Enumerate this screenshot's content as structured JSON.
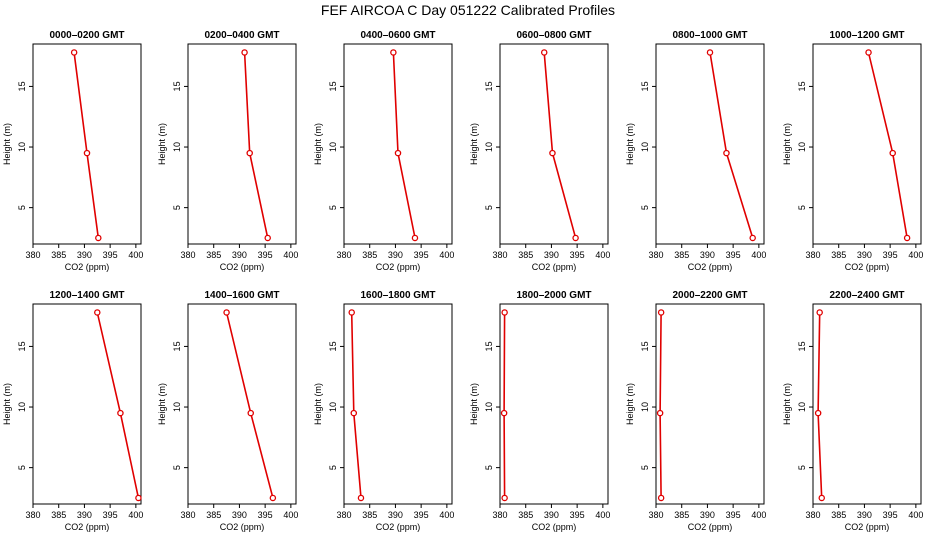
{
  "title": "FEF AIRCOA C  Day 051222  Calibrated Profiles",
  "colors": {
    "series": "#e00000",
    "axis": "#000000"
  },
  "chart_data": [
    {
      "type": "line",
      "title": "0000–0200 GMT",
      "xlabel": "CO2 (ppm)",
      "ylabel": "Height (m)",
      "xlim": [
        380,
        401
      ],
      "ylim": [
        2,
        18.5
      ],
      "xticks": [
        "380",
        "385",
        "390",
        "395",
        "400"
      ],
      "yticks": [
        "5",
        "10",
        "15"
      ],
      "x": [
        388.0,
        390.5,
        392.7
      ],
      "y": [
        17.8,
        9.5,
        2.5
      ]
    },
    {
      "type": "line",
      "title": "0200–0400 GMT",
      "xlabel": "CO2 (ppm)",
      "ylabel": "Height (m)",
      "xlim": [
        380,
        401
      ],
      "ylim": [
        2,
        18.5
      ],
      "xticks": [
        "380",
        "385",
        "390",
        "395",
        "400"
      ],
      "yticks": [
        "5",
        "10",
        "15"
      ],
      "x": [
        391.0,
        392.0,
        395.5
      ],
      "y": [
        17.8,
        9.5,
        2.5
      ]
    },
    {
      "type": "line",
      "title": "0400–0600 GMT",
      "xlabel": "CO2 (ppm)",
      "ylabel": "Height (m)",
      "xlim": [
        380,
        401
      ],
      "ylim": [
        2,
        18.5
      ],
      "xticks": [
        "380",
        "385",
        "390",
        "395",
        "400"
      ],
      "yticks": [
        "5",
        "10",
        "15"
      ],
      "x": [
        389.6,
        390.5,
        393.8
      ],
      "y": [
        17.8,
        9.5,
        2.5
      ]
    },
    {
      "type": "line",
      "title": "0600–0800 GMT",
      "xlabel": "CO2 (ppm)",
      "ylabel": "Height (m)",
      "xlim": [
        380,
        401
      ],
      "ylim": [
        2,
        18.5
      ],
      "xticks": [
        "380",
        "385",
        "390",
        "395",
        "400"
      ],
      "yticks": [
        "5",
        "10",
        "15"
      ],
      "x": [
        388.6,
        390.2,
        394.7
      ],
      "y": [
        17.8,
        9.5,
        2.5
      ]
    },
    {
      "type": "line",
      "title": "0800–1000 GMT",
      "xlabel": "CO2 (ppm)",
      "ylabel": "Height (m)",
      "xlim": [
        380,
        401
      ],
      "ylim": [
        2,
        18.5
      ],
      "xticks": [
        "380",
        "385",
        "390",
        "395",
        "400"
      ],
      "yticks": [
        "5",
        "10",
        "15"
      ],
      "x": [
        390.5,
        393.7,
        398.8
      ],
      "y": [
        17.8,
        9.5,
        2.5
      ]
    },
    {
      "type": "line",
      "title": "1000–1200 GMT",
      "xlabel": "CO2 (ppm)",
      "ylabel": "Height (m)",
      "xlim": [
        380,
        401
      ],
      "ylim": [
        2,
        18.5
      ],
      "xticks": [
        "380",
        "385",
        "390",
        "395",
        "400"
      ],
      "yticks": [
        "5",
        "10",
        "15"
      ],
      "x": [
        390.8,
        395.5,
        398.3
      ],
      "y": [
        17.8,
        9.5,
        2.5
      ]
    },
    {
      "type": "line",
      "title": "1200–1400 GMT",
      "xlabel": "CO2 (ppm)",
      "ylabel": "Height (m)",
      "xlim": [
        380,
        401
      ],
      "ylim": [
        2,
        18.5
      ],
      "xticks": [
        "380",
        "385",
        "390",
        "395",
        "400"
      ],
      "yticks": [
        "5",
        "10",
        "15"
      ],
      "x": [
        392.5,
        397.0,
        400.5
      ],
      "y": [
        17.8,
        9.5,
        2.5
      ]
    },
    {
      "type": "line",
      "title": "1400–1600 GMT",
      "xlabel": "CO2 (ppm)",
      "ylabel": "Height (m)",
      "xlim": [
        380,
        401
      ],
      "ylim": [
        2,
        18.5
      ],
      "xticks": [
        "380",
        "385",
        "390",
        "395",
        "400"
      ],
      "yticks": [
        "5",
        "10",
        "15"
      ],
      "x": [
        387.5,
        392.2,
        396.5
      ],
      "y": [
        17.8,
        9.5,
        2.5
      ]
    },
    {
      "type": "line",
      "title": "1600–1800 GMT",
      "xlabel": "CO2 (ppm)",
      "ylabel": "Height (m)",
      "xlim": [
        380,
        401
      ],
      "ylim": [
        2,
        18.5
      ],
      "xticks": [
        "380",
        "385",
        "390",
        "395",
        "400"
      ],
      "yticks": [
        "5",
        "10",
        "15"
      ],
      "x": [
        381.5,
        381.9,
        383.3
      ],
      "y": [
        17.8,
        9.5,
        2.5
      ]
    },
    {
      "type": "line",
      "title": "1800–2000 GMT",
      "xlabel": "CO2 (ppm)",
      "ylabel": "Height (m)",
      "xlim": [
        380,
        401
      ],
      "ylim": [
        2,
        18.5
      ],
      "xticks": [
        "380",
        "385",
        "390",
        "395",
        "400"
      ],
      "yticks": [
        "5",
        "10",
        "15"
      ],
      "x": [
        380.9,
        380.8,
        380.9
      ],
      "y": [
        17.8,
        9.5,
        2.5
      ]
    },
    {
      "type": "line",
      "title": "2000–2200 GMT",
      "xlabel": "CO2 (ppm)",
      "ylabel": "Height (m)",
      "xlim": [
        380,
        401
      ],
      "ylim": [
        2,
        18.5
      ],
      "xticks": [
        "380",
        "385",
        "390",
        "395",
        "400"
      ],
      "yticks": [
        "5",
        "10",
        "15"
      ],
      "x": [
        381.0,
        380.8,
        381.0
      ],
      "y": [
        17.8,
        9.5,
        2.5
      ]
    },
    {
      "type": "line",
      "title": "2200–2400 GMT",
      "xlabel": "CO2 (ppm)",
      "ylabel": "Height (m)",
      "xlim": [
        380,
        401
      ],
      "ylim": [
        2,
        18.5
      ],
      "xticks": [
        "380",
        "385",
        "390",
        "395",
        "400"
      ],
      "yticks": [
        "5",
        "10",
        "15"
      ],
      "x": [
        381.3,
        381.0,
        381.7
      ],
      "y": [
        17.8,
        9.5,
        2.5
      ]
    }
  ]
}
